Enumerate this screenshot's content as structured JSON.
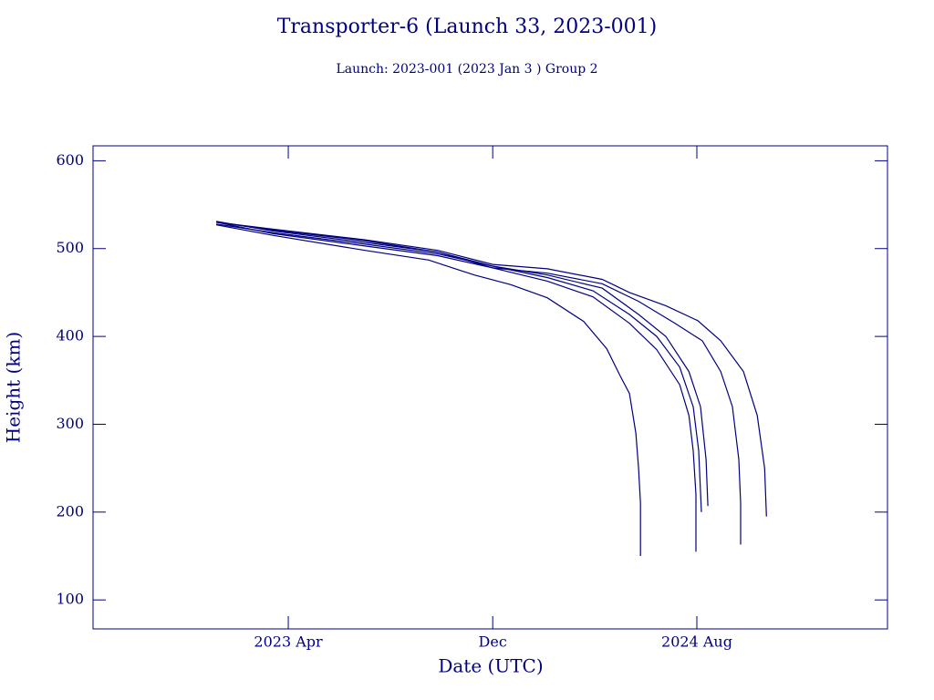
{
  "chart_data": {
    "type": "line",
    "title": "Transporter-6 (Launch 33, 2023-001)",
    "subtitle": "Launch: 2023-001  (2023 Jan  3 )  Group 2",
    "x_label": "Date (UTC)",
    "y_label": "Height (km)",
    "xlim": [
      2022.613,
      2025.205
    ],
    "xticks": [
      {
        "value": 2023.25,
        "label": "2023 Apr"
      },
      {
        "value": 2023.917,
        "label": "Dec"
      },
      {
        "value": 2024.583,
        "label": "2024 Aug"
      }
    ],
    "ylim": [
      67,
      617
    ],
    "yticks": [
      100,
      200,
      300,
      400,
      500,
      600
    ],
    "color": "#000080",
    "series": [
      {
        "color": "#000080",
        "x": [
          2023.015,
          2023.202,
          2023.5,
          2023.708,
          2023.857,
          2023.976,
          2024.095,
          2024.214,
          2024.289,
          2024.333,
          2024.363,
          2024.384,
          2024.393,
          2024.399,
          2024.399
        ],
        "values": [
          527,
          515,
          498,
          487,
          470,
          459,
          444,
          417,
          386,
          355,
          335,
          290,
          250,
          210,
          150
        ]
      },
      {
        "color": "#000080",
        "x": [
          2023.015,
          2023.202,
          2023.5,
          2023.738,
          2023.917,
          2024.095,
          2024.244,
          2024.363,
          2024.452,
          2024.527,
          2024.557,
          2024.571,
          2024.58,
          2024.58
        ],
        "values": [
          530,
          517,
          503,
          492,
          478,
          463,
          445,
          415,
          385,
          345,
          310,
          270,
          220,
          155
        ]
      },
      {
        "color": "#000080",
        "x": [
          2023.015,
          2023.202,
          2023.5,
          2023.738,
          2023.917,
          2024.095,
          2024.244,
          2024.363,
          2024.452,
          2024.527,
          2024.571,
          2024.589,
          2024.598
        ],
        "values": [
          528,
          518,
          505,
          494,
          480,
          467,
          452,
          425,
          400,
          365,
          320,
          270,
          200
        ]
      },
      {
        "color": "#000080",
        "x": [
          2023.015,
          2023.202,
          2023.5,
          2023.738,
          2023.917,
          2024.095,
          2024.274,
          2024.393,
          2024.482,
          2024.557,
          2024.595,
          2024.613,
          2024.619
        ],
        "values": [
          531,
          520,
          507,
          496,
          480,
          470,
          455,
          425,
          400,
          360,
          320,
          260,
          207
        ]
      },
      {
        "color": "#000080",
        "x": [
          2023.015,
          2023.202,
          2023.5,
          2023.738,
          2023.917,
          2024.095,
          2024.274,
          2024.393,
          2024.512,
          2024.601,
          2024.661,
          2024.699,
          2024.72,
          2024.726,
          2024.726
        ],
        "values": [
          530,
          521,
          509,
          496,
          478,
          472,
          460,
          440,
          415,
          395,
          360,
          320,
          260,
          210,
          163
        ]
      },
      {
        "color": "#000080",
        "x": [
          2023.015,
          2023.202,
          2023.5,
          2023.738,
          2023.917,
          2024.095,
          2024.274,
          2024.363,
          2024.482,
          2024.586,
          2024.661,
          2024.735,
          2024.78,
          2024.804,
          2024.81
        ],
        "values": [
          530,
          522,
          510,
          498,
          482,
          477,
          465,
          450,
          435,
          418,
          395,
          360,
          310,
          250,
          195
        ]
      }
    ]
  }
}
